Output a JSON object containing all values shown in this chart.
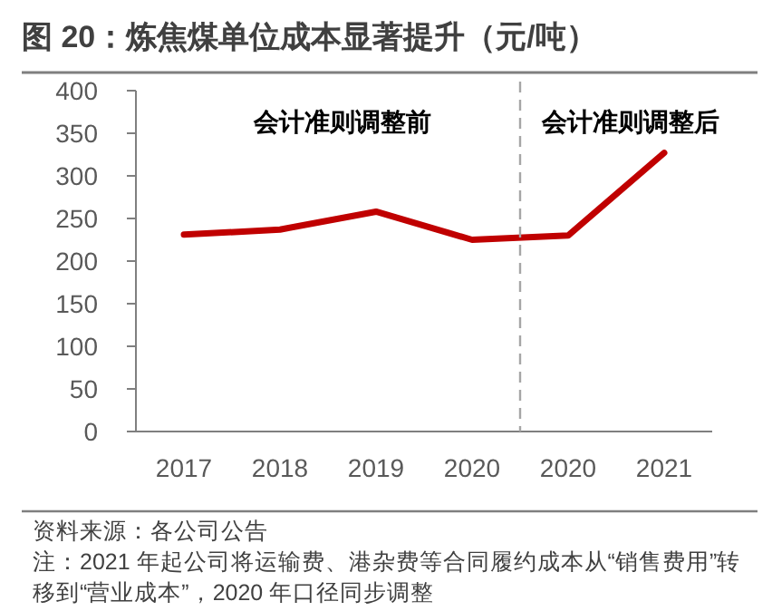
{
  "chart_data": {
    "type": "line",
    "title": "图 20：炼焦煤单位成本显著提升（元/吨）",
    "categories": [
      "2017",
      "2018",
      "2019",
      "2020",
      "2020",
      "2021"
    ],
    "series": [
      {
        "color": "#c00000",
        "values": [
          231,
          237,
          258,
          225,
          230,
          327
        ]
      }
    ],
    "ylim": [
      0,
      400
    ],
    "yticks": [
      0,
      50,
      100,
      150,
      200,
      250,
      300,
      350,
      400
    ],
    "grid": false,
    "marker": "none",
    "line_style": "solid",
    "annotations": [
      "会计准则调整前",
      "会计准则调整后",
      "资料来源：各公司公告",
      "注：2021 年起公司将运输费、港杂费等合同履约成本从“销售费用”转移到“营业成本”，2020 年口径同步调整"
    ]
  }
}
